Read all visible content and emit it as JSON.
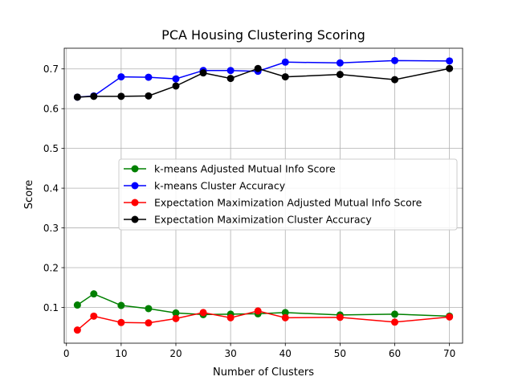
{
  "chart_data": {
    "type": "line",
    "title": "PCA Housing Clustering Scoring",
    "xlabel": "Number of Clusters",
    "ylabel": "Score",
    "xlim": [
      -0.4,
      72.4
    ],
    "ylim": [
      0.01,
      0.752
    ],
    "x": [
      2,
      5,
      10,
      15,
      20,
      25,
      30,
      35,
      40,
      50,
      60,
      70
    ],
    "x_ticks": [
      0,
      10,
      20,
      30,
      40,
      50,
      60,
      70
    ],
    "y_ticks": [
      0.1,
      0.2,
      0.3,
      0.4,
      0.5,
      0.6,
      0.7
    ],
    "grid": true,
    "legend_position": "center",
    "series": [
      {
        "name": "k-means Adjusted Mutual Info Score",
        "color": "#008000",
        "values": [
          0.106,
          0.134,
          0.105,
          0.097,
          0.086,
          0.082,
          0.083,
          0.084,
          0.087,
          0.081,
          0.083,
          0.078
        ]
      },
      {
        "name": "k-means Cluster Accuracy",
        "color": "#0000ff",
        "values": [
          0.629,
          0.632,
          0.68,
          0.679,
          0.675,
          0.696,
          0.696,
          0.694,
          0.717,
          0.715,
          0.721,
          0.72
        ]
      },
      {
        "name": "Expectation Maximization Adjusted Mutual Info Score",
        "color": "#ff0000",
        "values": [
          0.043,
          0.078,
          0.062,
          0.061,
          0.072,
          0.087,
          0.074,
          0.091,
          0.074,
          0.075,
          0.063,
          0.076
        ]
      },
      {
        "name": "Expectation Maximization Cluster Accuracy",
        "color": "#000000",
        "values": [
          0.629,
          0.631,
          0.631,
          0.632,
          0.657,
          0.69,
          0.676,
          0.701,
          0.68,
          0.686,
          0.673,
          0.701
        ]
      }
    ]
  }
}
